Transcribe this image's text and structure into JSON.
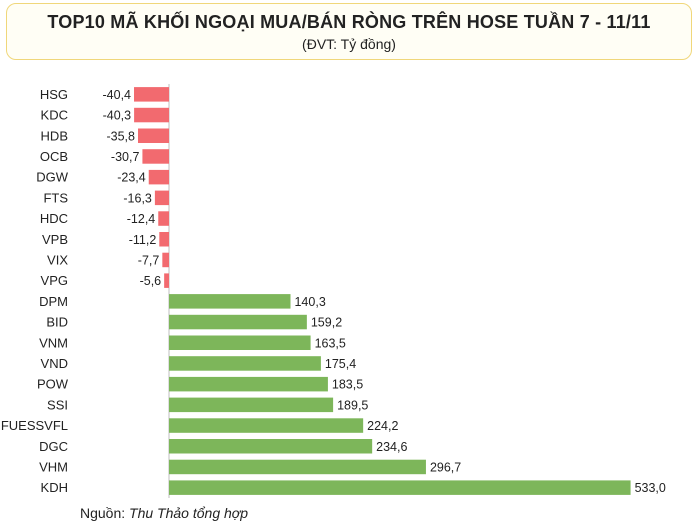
{
  "title": "TOP10 MÃ KHỐI NGOẠI MUA/BÁN RÒNG TRÊN HOSE TUẦN 7 - 11/11",
  "subtitle": "(ĐVT: Tỷ đồng)",
  "source": {
    "prefix": "Nguồn:",
    "name": "Thu Thảo tổng hợp"
  },
  "colors": {
    "negative": "#f26a6f",
    "positive": "#7db65a",
    "axis": "#bfbfbf",
    "header_border": "#f0d77a"
  },
  "chart_data": {
    "type": "bar",
    "orientation": "horizontal",
    "categories": [
      "HSG",
      "KDC",
      "HDB",
      "OCB",
      "DGW",
      "FTS",
      "HDC",
      "VPB",
      "VIX",
      "VPG",
      "DPM",
      "BID",
      "VNM",
      "VND",
      "POW",
      "SSI",
      "FUESSVFL",
      "DGC",
      "VHM",
      "KDH"
    ],
    "values": [
      -40.4,
      -40.3,
      -35.8,
      -30.7,
      -23.4,
      -16.3,
      -12.4,
      -11.2,
      -7.7,
      -5.6,
      140.3,
      159.2,
      163.5,
      175.4,
      183.5,
      189.5,
      224.2,
      234.6,
      296.7,
      533.0
    ],
    "value_labels": [
      "-40,4",
      "-40,3",
      "-35,8",
      "-30,7",
      "-23,4",
      "-16,3",
      "-12,4",
      "-11,2",
      "-7,7",
      "-5,6",
      "140,3",
      "159,2",
      "163,5",
      "175,4",
      "183,5",
      "189,5",
      "224,2",
      "234,6",
      "296,7",
      "533,0"
    ],
    "grid": false,
    "legend": "none"
  }
}
